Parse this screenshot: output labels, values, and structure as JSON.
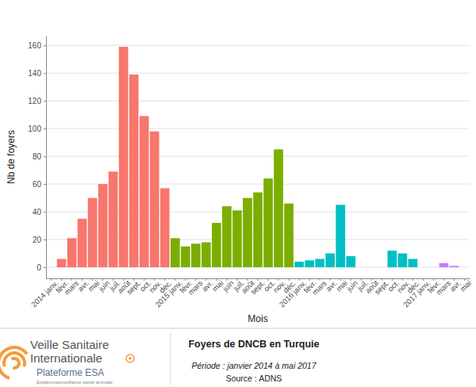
{
  "chart_data": {
    "type": "bar",
    "title": "Foyers de DNCB en Turquie",
    "subtitle": "Période : janvier 2014 à mai 2017",
    "x_label": "Mois",
    "y_label": "Nb de foyers",
    "annotations": [
      "Source : ADNS",
      "Veille Sanitaire",
      "Internationale",
      "Plateforme ESA",
      "Epidémiosurveillance santé animale"
    ],
    "categories": [
      "2014 janv.",
      "févr.",
      "mars",
      "avr.",
      "mai",
      "juin",
      "juil.",
      "août",
      "sept.",
      "oct.",
      "nov.",
      "déc.",
      "2015 janv.",
      "févr.",
      "mars",
      "avr.",
      "mai",
      "juin",
      "juil.",
      "août",
      "sept.",
      "oct.",
      "nov.",
      "déc.",
      "2016 janv.",
      "févr.",
      "mars",
      "avr.",
      "mai",
      "juin",
      "juil.",
      "août",
      "sept.",
      "oct.",
      "nov.",
      "déc.",
      "2017 janv.",
      "févr.",
      "mars",
      "avr.",
      "mai"
    ],
    "values": [
      0,
      6,
      21,
      35,
      50,
      60,
      69,
      159,
      139,
      109,
      98,
      57,
      21,
      15,
      17,
      18,
      32,
      44,
      41,
      50,
      54,
      64,
      85,
      46,
      4,
      5,
      6,
      10,
      45,
      8,
      0,
      0,
      0,
      12,
      10,
      6,
      0,
      0,
      3,
      1,
      0
    ],
    "colors": [
      "#F8766D",
      "#F8766D",
      "#F8766D",
      "#F8766D",
      "#F8766D",
      "#F8766D",
      "#F8766D",
      "#F8766D",
      "#F8766D",
      "#F8766D",
      "#F8766D",
      "#F8766D",
      "#7CAE00",
      "#7CAE00",
      "#7CAE00",
      "#7CAE00",
      "#7CAE00",
      "#7CAE00",
      "#7CAE00",
      "#7CAE00",
      "#7CAE00",
      "#7CAE00",
      "#7CAE00",
      "#7CAE00",
      "#00BFC4",
      "#00BFC4",
      "#00BFC4",
      "#00BFC4",
      "#00BFC4",
      "#00BFC4",
      "#00BFC4",
      "#00BFC4",
      "#00BFC4",
      "#00BFC4",
      "#00BFC4",
      "#00BFC4",
      "#C77CFF",
      "#C77CFF",
      "#C77CFF",
      "#C77CFF",
      "#C77CFF"
    ],
    "ylim": [
      -8,
      167
    ],
    "yticks": [
      0,
      20,
      40,
      60,
      80,
      100,
      120,
      140,
      160
    ],
    "grid": true
  }
}
